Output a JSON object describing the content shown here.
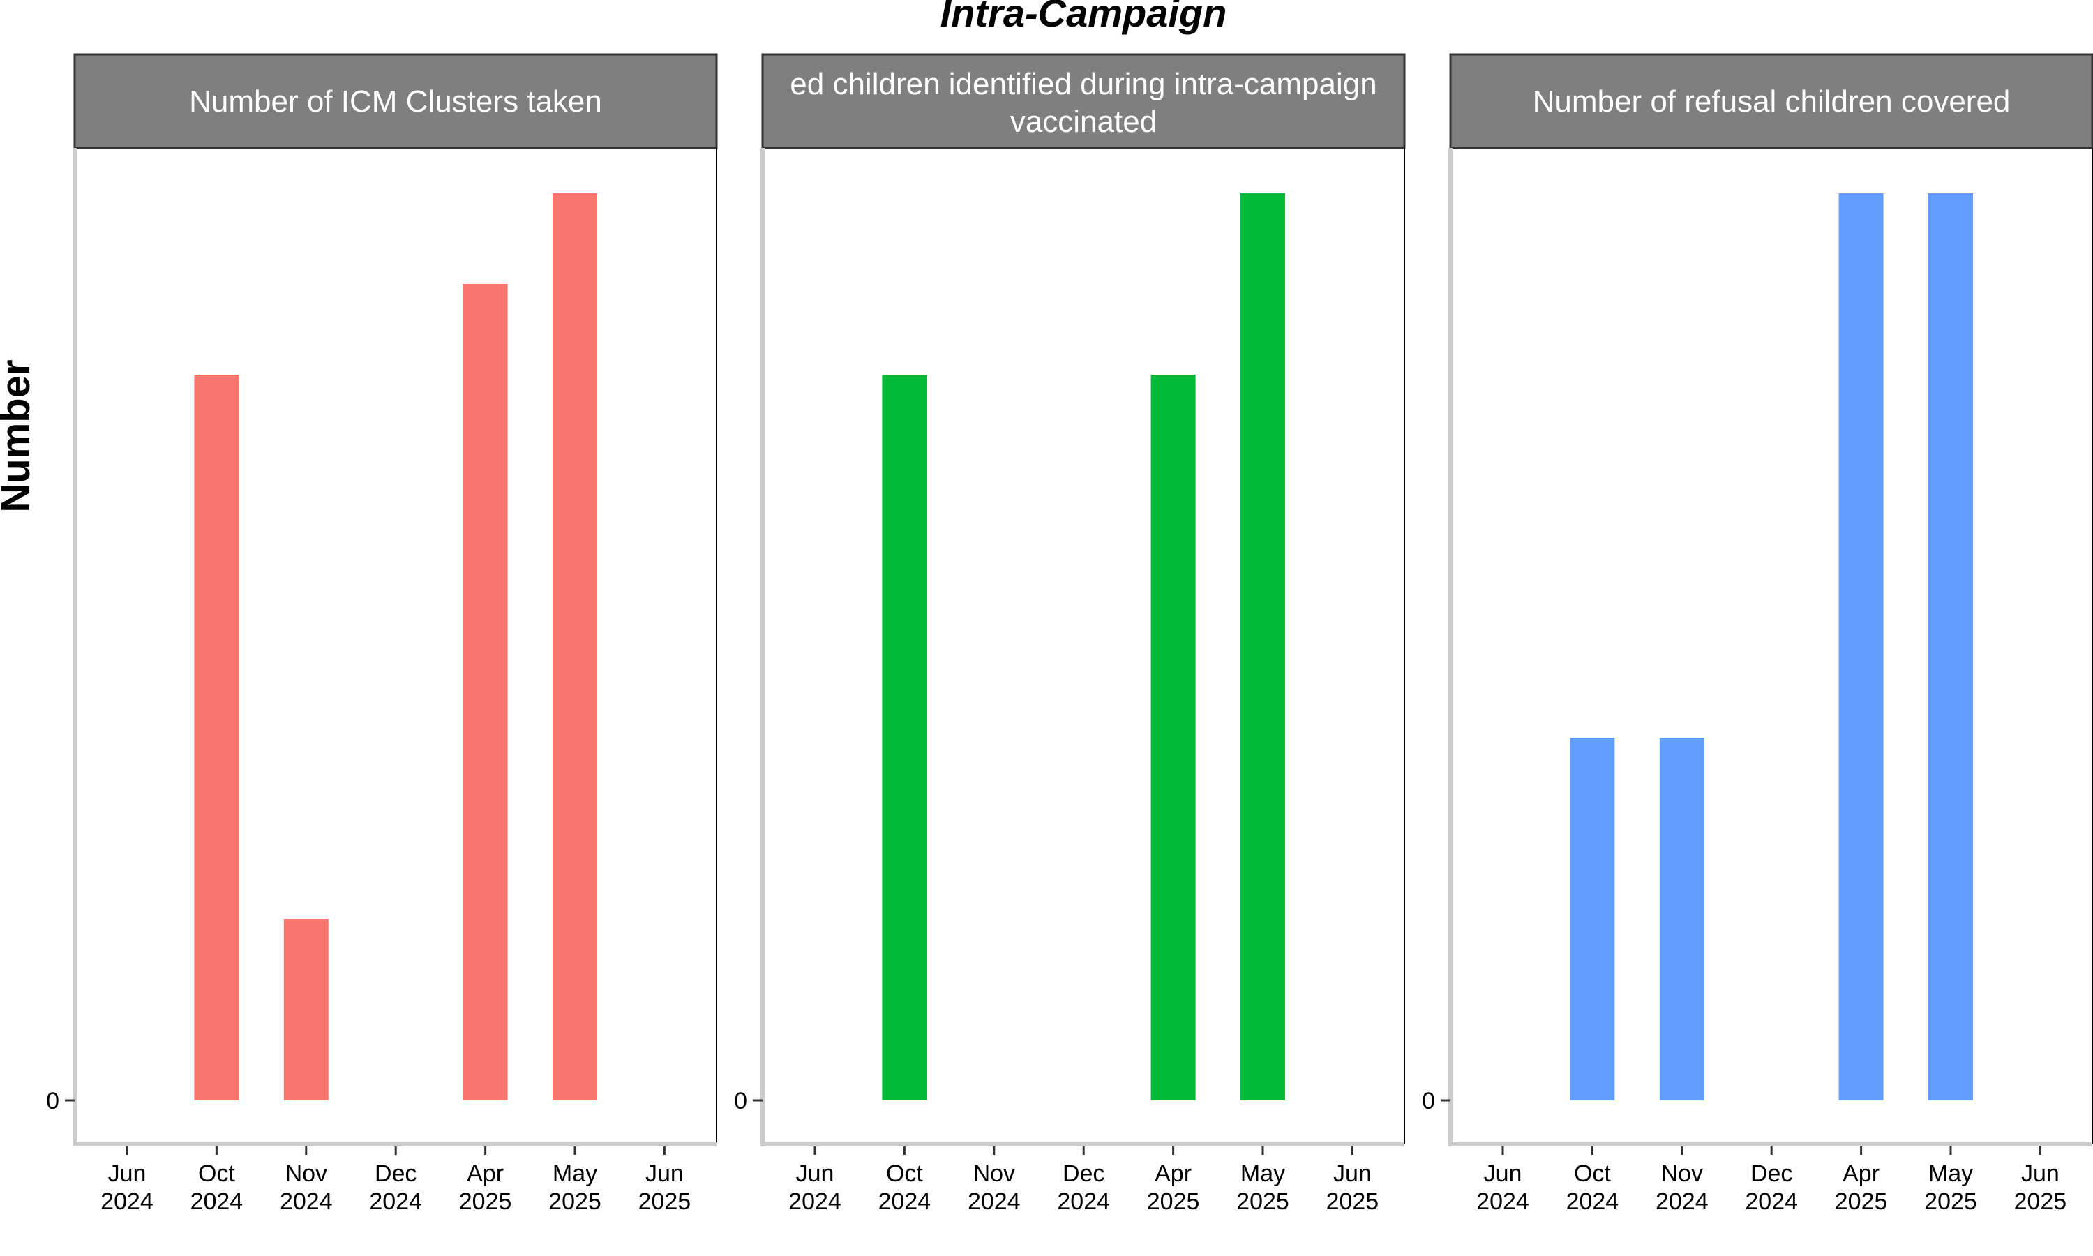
{
  "title": "Intra-Campaign",
  "ylabel": "Number",
  "colors": [
    "#F8766D",
    "#00BA38",
    "#619CFF"
  ],
  "chart_data": [
    {
      "type": "bar",
      "panel_title_lines": [
        "Number of ICM Clusters taken"
      ],
      "x_ticks": [
        "Jun 2024",
        "Oct 2024",
        "Nov 2024",
        "Dec 2024",
        "Apr 2025",
        "May 2025",
        "Jun 2025"
      ],
      "y_ticks": [
        "0"
      ],
      "series": [
        {
          "x": [
            "Oct 2024",
            "Nov 2024",
            "Apr 2025",
            "May 2025"
          ],
          "values": [
            8,
            2,
            9,
            10
          ]
        }
      ],
      "ylim": [
        0,
        10
      ]
    },
    {
      "type": "bar",
      "panel_title_lines": [
        "ed children identified during intra-campaign",
        "vaccinated"
      ],
      "x_ticks": [
        "Jun 2024",
        "Oct 2024",
        "Nov 2024",
        "Dec 2024",
        "Apr 2025",
        "May 2025",
        "Jun 2025"
      ],
      "y_ticks": [
        "0"
      ],
      "series": [
        {
          "x": [
            "Oct 2024",
            "Apr 2025",
            "May 2025"
          ],
          "values": [
            8,
            8,
            10
          ]
        }
      ],
      "ylim": [
        0,
        10
      ]
    },
    {
      "type": "bar",
      "panel_title_lines": [
        "Number of refusal children covered"
      ],
      "x_ticks": [
        "Jun 2024",
        "Oct 2024",
        "Nov 2024",
        "Dec 2024",
        "Apr 2025",
        "May 2025",
        "Jun 2025"
      ],
      "y_ticks": [
        "0"
      ],
      "series": [
        {
          "x": [
            "Oct 2024",
            "Nov 2024",
            "Apr 2025",
            "May 2025"
          ],
          "values": [
            4,
            4,
            10,
            10
          ]
        }
      ],
      "ylim": [
        0,
        10
      ]
    }
  ]
}
